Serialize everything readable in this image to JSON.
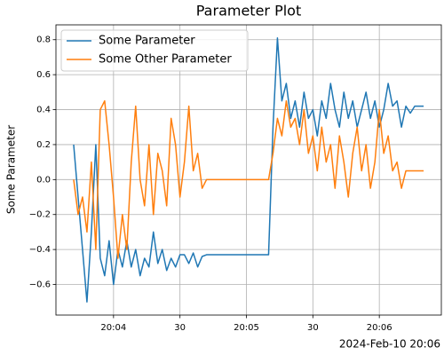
{
  "chart_data": {
    "type": "line",
    "title": "Parameter Plot",
    "ylabel": "Some Parameter",
    "x_offset": "2024-Feb-10 20:06",
    "x": [
      "20:03:42",
      "20:03:44",
      "20:03:46",
      "20:03:48",
      "20:03:50",
      "20:03:52",
      "20:03:54",
      "20:03:56",
      "20:03:58",
      "20:04:00",
      "20:04:02",
      "20:04:04",
      "20:04:06",
      "20:04:08",
      "20:04:10",
      "20:04:12",
      "20:04:14",
      "20:04:16",
      "20:04:18",
      "20:04:20",
      "20:04:22",
      "20:04:24",
      "20:04:26",
      "20:04:28",
      "20:04:30",
      "20:04:32",
      "20:04:34",
      "20:04:36",
      "20:04:38",
      "20:04:40",
      "20:04:42",
      "20:05:10",
      "20:05:12",
      "20:05:14",
      "20:05:16",
      "20:05:18",
      "20:05:20",
      "20:05:22",
      "20:05:24",
      "20:05:26",
      "20:05:28",
      "20:05:30",
      "20:05:32",
      "20:05:34",
      "20:05:36",
      "20:05:38",
      "20:05:40",
      "20:05:42",
      "20:05:44",
      "20:05:46",
      "20:05:48",
      "20:05:50",
      "20:05:52",
      "20:05:54",
      "20:05:56",
      "20:05:58",
      "20:06:00",
      "20:06:02",
      "20:06:04",
      "20:06:06",
      "20:06:08",
      "20:06:10",
      "20:06:12",
      "20:06:14",
      "20:06:16",
      "20:06:18",
      "20:06:20"
    ],
    "series": [
      {
        "name": "Some Parameter",
        "color": "#1f77b4",
        "values": [
          0.2,
          -0.1,
          -0.4,
          -0.7,
          -0.3,
          0.2,
          -0.45,
          -0.55,
          -0.35,
          -0.6,
          -0.4,
          -0.5,
          -0.35,
          -0.5,
          -0.4,
          -0.55,
          -0.45,
          -0.5,
          -0.3,
          -0.48,
          -0.4,
          -0.52,
          -0.45,
          -0.5,
          -0.43,
          -0.43,
          -0.48,
          -0.42,
          -0.5,
          -0.44,
          -0.43,
          -0.43,
          0.3,
          0.81,
          0.45,
          0.55,
          0.35,
          0.45,
          0.3,
          0.5,
          0.35,
          0.4,
          0.25,
          0.45,
          0.35,
          0.55,
          0.4,
          0.3,
          0.5,
          0.35,
          0.45,
          0.3,
          0.4,
          0.5,
          0.35,
          0.45,
          0.3,
          0.4,
          0.55,
          0.42,
          0.45,
          0.3,
          0.42,
          0.38,
          0.42,
          0.42,
          0.42
        ]
      },
      {
        "name": "Some Other Parameter",
        "color": "#ff7f0e",
        "values": [
          0.0,
          -0.2,
          -0.1,
          -0.3,
          0.1,
          -0.4,
          0.4,
          0.45,
          0.2,
          -0.1,
          -0.45,
          -0.2,
          -0.4,
          0.1,
          0.42,
          0.0,
          -0.15,
          0.2,
          -0.2,
          0.15,
          0.05,
          -0.15,
          0.35,
          0.2,
          -0.1,
          0.1,
          0.42,
          0.05,
          0.15,
          -0.05,
          0.0,
          0.0,
          0.15,
          0.35,
          0.25,
          0.45,
          0.3,
          0.35,
          0.2,
          0.4,
          0.15,
          0.25,
          0.05,
          0.3,
          0.1,
          0.2,
          -0.05,
          0.25,
          0.1,
          -0.1,
          0.15,
          0.3,
          0.05,
          0.2,
          -0.05,
          0.1,
          0.4,
          0.15,
          0.25,
          0.05,
          0.1,
          -0.05,
          0.05,
          0.05,
          0.05,
          0.05,
          0.05
        ]
      }
    ],
    "xlim": [
      "20:03:34",
      "20:06:28"
    ],
    "xticks": [
      {
        "value": "20:04:00",
        "label": "20:04"
      },
      {
        "value": "20:04:30",
        "label": "30"
      },
      {
        "value": "20:05:00",
        "label": "20:05"
      },
      {
        "value": "20:05:30",
        "label": "30"
      },
      {
        "value": "20:06:00",
        "label": "20:06"
      }
    ],
    "ylim": [
      -0.775,
      0.885
    ],
    "yticks": [
      {
        "value": -0.6,
        "label": "−0.6"
      },
      {
        "value": -0.4,
        "label": "−0.4"
      },
      {
        "value": -0.2,
        "label": "−0.2"
      },
      {
        "value": 0,
        "label": "0.0"
      },
      {
        "value": 0.2,
        "label": "0.2"
      },
      {
        "value": 0.4,
        "label": "0.4"
      },
      {
        "value": 0.6,
        "label": "0.6"
      },
      {
        "value": 0.8,
        "label": "0.8"
      }
    ],
    "grid": true,
    "legend": "upper left"
  }
}
